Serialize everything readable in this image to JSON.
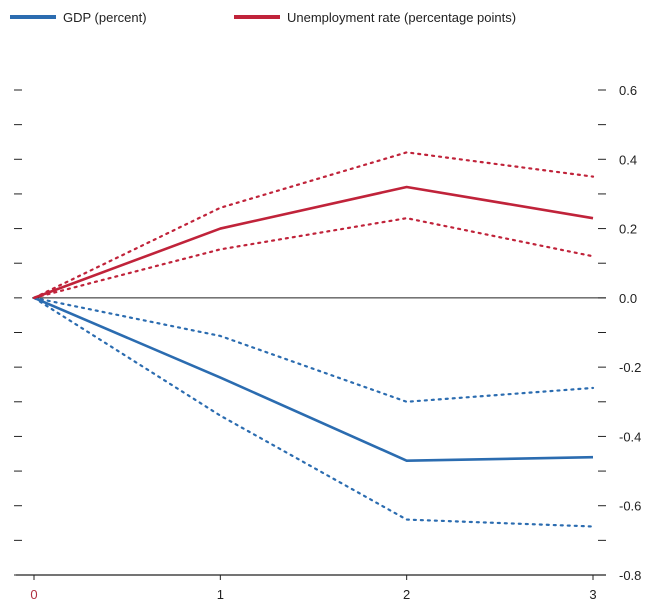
{
  "chart_data": {
    "type": "line",
    "x": [
      0,
      1,
      2,
      3
    ],
    "xlim": [
      0,
      3
    ],
    "ylim": [
      -0.8,
      0.6
    ],
    "y_ticks": [
      0.6,
      0.4,
      0.2,
      0.0,
      -0.2,
      -0.4,
      -0.6,
      -0.8
    ],
    "y_tick_labels": [
      "0.6",
      "0.4",
      "0.2",
      "0.0",
      "-0.2",
      "-0.4",
      "-0.6",
      "-0.8"
    ],
    "x_tick_labels": [
      "0",
      "1",
      "2",
      "3"
    ],
    "legend_position": "top-left",
    "series": [
      {
        "name": "GDP (percent)",
        "color": "#2b6cb0",
        "values": [
          0.0,
          -0.23,
          -0.47,
          -0.46
        ],
        "lower": [
          0.0,
          -0.34,
          -0.64,
          -0.66
        ],
        "upper": [
          0.0,
          -0.11,
          -0.3,
          -0.26
        ]
      },
      {
        "name": "Unemployment rate (percentage points)",
        "color": "#c0233a",
        "values": [
          0.0,
          0.2,
          0.32,
          0.23
        ],
        "lower": [
          0.0,
          0.14,
          0.23,
          0.12
        ],
        "upper": [
          0.0,
          0.26,
          0.42,
          0.35
        ]
      }
    ]
  }
}
